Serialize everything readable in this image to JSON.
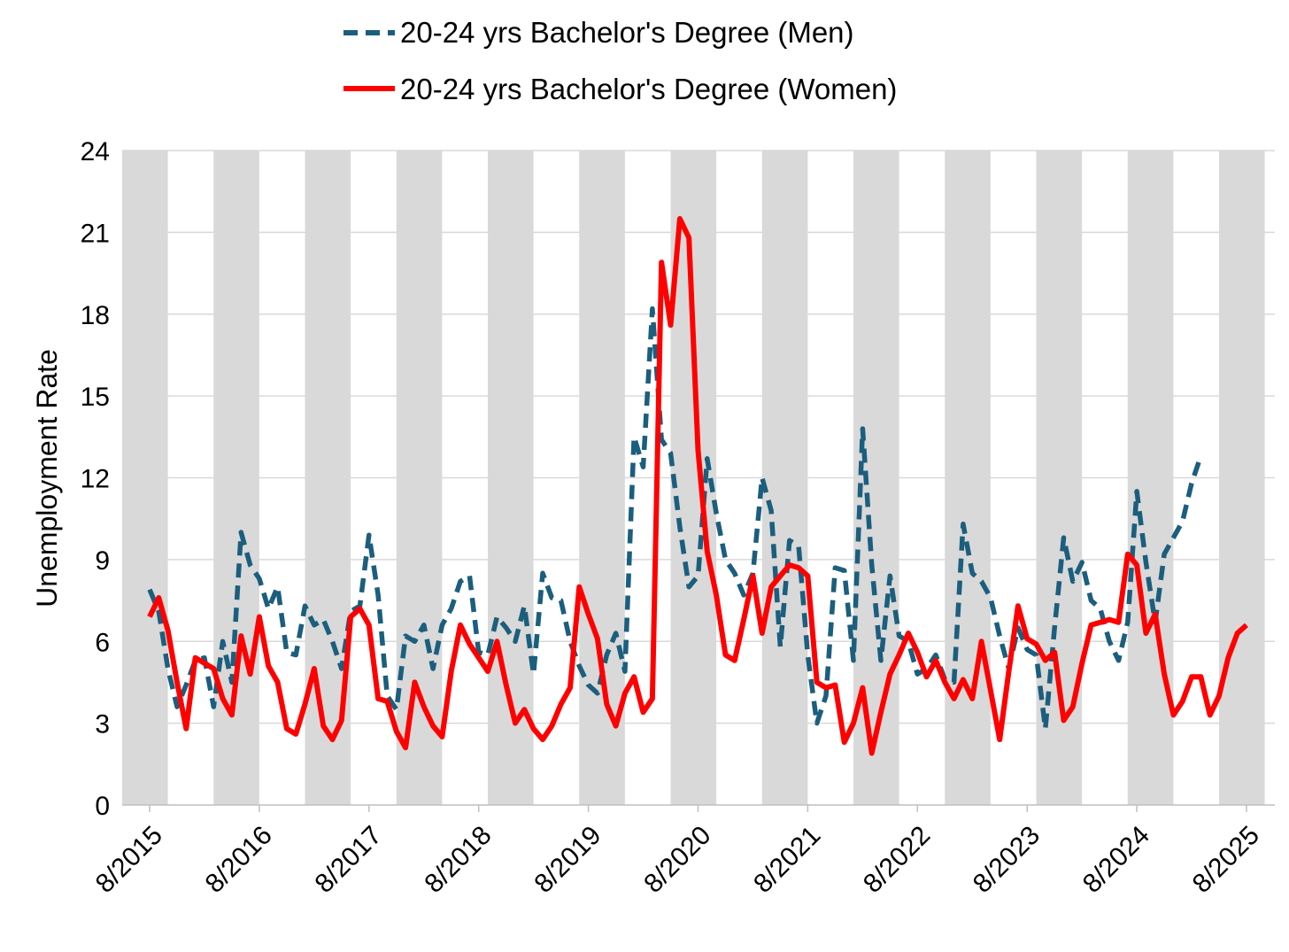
{
  "chart_data": {
    "type": "line",
    "title": "",
    "xlabel": "",
    "ylabel": "Unemployment Rate",
    "ylim": [
      0,
      24
    ],
    "yticks": [
      0,
      3,
      6,
      9,
      12,
      15,
      18,
      21,
      24
    ],
    "x_start": "8/2015",
    "x_end": "11/2025",
    "xtick_labels": [
      "8/2015",
      "8/2016",
      "8/2017",
      "8/2018",
      "8/2019",
      "8/2020",
      "8/2021",
      "8/2022",
      "8/2023",
      "8/2024",
      "8/2025"
    ],
    "gridlines": "horizontal",
    "shaded_bands": "alternating grey vertical bands",
    "legend_position": "top-center",
    "colors": {
      "men": "#1b5e7e",
      "women": "#ff0000",
      "band": "#d9d9d9",
      "grid": "#d9d9d9"
    },
    "series": [
      {
        "name": "20-24 yrs Bachelor's Degree (Men)",
        "style": "dashed",
        "color": "#1b5e7e",
        "points": [
          [
            "8/2015",
            7.9
          ],
          [
            "9/2015",
            7.1
          ],
          [
            "10/2015",
            5.0
          ],
          [
            "11/2015",
            3.6
          ],
          [
            "12/2015",
            4.4
          ],
          [
            "1/2016",
            5.3
          ],
          [
            "2/2016",
            5.4
          ],
          [
            "3/2016",
            3.6
          ],
          [
            "4/2016",
            6.0
          ],
          [
            "5/2016",
            4.5
          ],
          [
            "6/2016",
            10.0
          ],
          [
            "7/2016",
            8.8
          ],
          [
            "8/2016",
            8.3
          ],
          [
            "9/2016",
            7.2
          ],
          [
            "10/2016",
            8.0
          ],
          [
            "11/2016",
            5.6
          ],
          [
            "12/2016",
            5.5
          ],
          [
            "1/2017",
            7.3
          ],
          [
            "2/2017",
            6.6
          ],
          [
            "3/2017",
            6.8
          ],
          [
            "4/2017",
            6.0
          ],
          [
            "5/2017",
            5.0
          ],
          [
            "6/2017",
            7.1
          ],
          [
            "7/2017",
            7.3
          ],
          [
            "8/2017",
            9.9
          ],
          [
            "9/2017",
            7.7
          ],
          [
            "10/2017",
            4.0
          ],
          [
            "11/2017",
            3.5
          ],
          [
            "12/2017",
            6.2
          ],
          [
            "1/2018",
            6.0
          ],
          [
            "2/2018",
            6.6
          ],
          [
            "3/2018",
            5.0
          ],
          [
            "4/2018",
            6.6
          ],
          [
            "5/2018",
            7.2
          ],
          [
            "6/2018",
            8.2
          ],
          [
            "7/2018",
            8.4
          ],
          [
            "8/2018",
            5.6
          ],
          [
            "9/2018",
            5.5
          ],
          [
            "10/2018",
            6.9
          ],
          [
            "11/2018",
            6.5
          ],
          [
            "12/2018",
            6.0
          ],
          [
            "1/2019",
            7.3
          ],
          [
            "2/2019",
            4.8
          ],
          [
            "3/2019",
            8.5
          ],
          [
            "4/2019",
            7.6
          ],
          [
            "5/2019",
            7.5
          ],
          [
            "6/2019",
            6.0
          ],
          [
            "7/2019",
            5.1
          ],
          [
            "8/2019",
            4.4
          ],
          [
            "9/2019",
            4.1
          ],
          [
            "10/2019",
            5.5
          ],
          [
            "11/2019",
            6.3
          ],
          [
            "12/2019",
            4.9
          ],
          [
            "1/2020",
            13.5
          ],
          [
            "2/2020",
            12.4
          ],
          [
            "3/2020",
            18.2
          ],
          [
            "4/2020",
            13.4
          ],
          [
            "5/2020",
            12.9
          ],
          [
            "6/2020",
            10.2
          ],
          [
            "7/2020",
            8.0
          ],
          [
            "8/2020",
            8.4
          ],
          [
            "9/2020",
            12.7
          ],
          [
            "10/2020",
            10.7
          ],
          [
            "11/2020",
            9.0
          ],
          [
            "12/2020",
            8.5
          ],
          [
            "1/2021",
            7.7
          ],
          [
            "2/2021",
            8.5
          ],
          [
            "3/2021",
            12.0
          ],
          [
            "4/2021",
            10.8
          ],
          [
            "5/2021",
            5.8
          ],
          [
            "6/2021",
            9.7
          ],
          [
            "7/2021",
            9.5
          ],
          [
            "8/2021",
            5.5
          ],
          [
            "9/2021",
            3.0
          ],
          [
            "10/2021",
            4.0
          ],
          [
            "11/2021",
            8.7
          ],
          [
            "12/2021",
            8.6
          ],
          [
            "1/2022",
            5.3
          ],
          [
            "2/2022",
            13.8
          ],
          [
            "3/2022",
            8.8
          ],
          [
            "4/2022",
            5.3
          ],
          [
            "5/2022",
            8.4
          ],
          [
            "6/2022",
            6.2
          ],
          [
            "7/2022",
            6.0
          ],
          [
            "8/2022",
            4.8
          ],
          [
            "9/2022",
            5.0
          ],
          [
            "10/2022",
            5.5
          ],
          [
            "11/2022",
            4.6
          ],
          [
            "12/2022",
            4.5
          ],
          [
            "1/2023",
            10.3
          ],
          [
            "2/2023",
            8.5
          ],
          [
            "3/2023",
            8.2
          ],
          [
            "4/2023",
            7.6
          ],
          [
            "5/2023",
            6.2
          ],
          [
            "6/2023",
            5.0
          ],
          [
            "7/2023",
            6.5
          ],
          [
            "8/2023",
            5.7
          ],
          [
            "9/2023",
            5.5
          ],
          [
            "10/2023",
            2.8
          ],
          [
            "11/2023",
            6.5
          ],
          [
            "12/2023",
            9.8
          ],
          [
            "1/2024",
            8.2
          ],
          [
            "2/2024",
            8.9
          ],
          [
            "3/2024",
            7.5
          ],
          [
            "4/2024",
            7.2
          ],
          [
            "5/2024",
            6.0
          ],
          [
            "6/2024",
            5.3
          ],
          [
            "7/2024",
            6.7
          ],
          [
            "8/2024",
            11.5
          ],
          [
            "9/2024",
            8.9
          ],
          [
            "10/2024",
            6.7
          ],
          [
            "11/2024",
            9.2
          ],
          [
            "12/2024",
            9.8
          ],
          [
            "1/2025",
            10.4
          ],
          [
            "2/2025",
            11.8
          ],
          [
            "3/2025",
            12.8
          ]
        ]
      },
      {
        "name": "20-24 yrs Bachelor's Degree (Women)",
        "style": "solid",
        "color": "#ff0000",
        "points": [
          [
            "8/2015",
            6.9
          ],
          [
            "9/2015",
            7.6
          ],
          [
            "10/2015",
            6.4
          ],
          [
            "11/2015",
            4.5
          ],
          [
            "12/2015",
            2.8
          ],
          [
            "1/2016",
            5.4
          ],
          [
            "2/2016",
            5.2
          ],
          [
            "3/2016",
            5.0
          ],
          [
            "4/2016",
            3.9
          ],
          [
            "5/2016",
            3.3
          ],
          [
            "6/2016",
            6.2
          ],
          [
            "7/2016",
            4.8
          ],
          [
            "8/2016",
            6.9
          ],
          [
            "9/2016",
            5.1
          ],
          [
            "10/2016",
            4.5
          ],
          [
            "11/2016",
            2.8
          ],
          [
            "12/2016",
            2.6
          ],
          [
            "1/2017",
            3.7
          ],
          [
            "2/2017",
            5.0
          ],
          [
            "3/2017",
            2.9
          ],
          [
            "4/2017",
            2.4
          ],
          [
            "5/2017",
            3.1
          ],
          [
            "6/2017",
            6.9
          ],
          [
            "7/2017",
            7.2
          ],
          [
            "8/2017",
            6.6
          ],
          [
            "9/2017",
            3.9
          ],
          [
            "10/2017",
            3.8
          ],
          [
            "11/2017",
            2.7
          ],
          [
            "12/2017",
            2.1
          ],
          [
            "1/2018",
            4.5
          ],
          [
            "2/2018",
            3.6
          ],
          [
            "3/2018",
            2.9
          ],
          [
            "4/2018",
            2.5
          ],
          [
            "5/2018",
            4.9
          ],
          [
            "6/2018",
            6.6
          ],
          [
            "7/2018",
            5.9
          ],
          [
            "8/2018",
            5.4
          ],
          [
            "9/2018",
            4.9
          ],
          [
            "10/2018",
            6.0
          ],
          [
            "11/2018",
            4.4
          ],
          [
            "12/2018",
            3.0
          ],
          [
            "1/2019",
            3.5
          ],
          [
            "2/2019",
            2.8
          ],
          [
            "3/2019",
            2.4
          ],
          [
            "4/2019",
            2.9
          ],
          [
            "5/2019",
            3.7
          ],
          [
            "6/2019",
            4.3
          ],
          [
            "7/2019",
            8.0
          ],
          [
            "8/2019",
            7.0
          ],
          [
            "9/2019",
            6.1
          ],
          [
            "10/2019",
            3.7
          ],
          [
            "11/2019",
            2.9
          ],
          [
            "12/2019",
            4.1
          ],
          [
            "1/2020",
            4.7
          ],
          [
            "2/2020",
            3.4
          ],
          [
            "3/2020",
            3.9
          ],
          [
            "4/2020",
            19.9
          ],
          [
            "5/2020",
            17.6
          ],
          [
            "6/2020",
            21.5
          ],
          [
            "7/2020",
            20.8
          ],
          [
            "8/2020",
            13.0
          ],
          [
            "9/2020",
            9.3
          ],
          [
            "10/2020",
            7.7
          ],
          [
            "11/2020",
            5.5
          ],
          [
            "12/2020",
            5.3
          ],
          [
            "1/2021",
            6.8
          ],
          [
            "2/2021",
            8.4
          ],
          [
            "3/2021",
            6.3
          ],
          [
            "4/2021",
            8.0
          ],
          [
            "5/2021",
            8.4
          ],
          [
            "6/2021",
            8.8
          ],
          [
            "7/2021",
            8.7
          ],
          [
            "8/2021",
            8.4
          ],
          [
            "9/2021",
            4.5
          ],
          [
            "10/2021",
            4.3
          ],
          [
            "11/2021",
            4.4
          ],
          [
            "12/2021",
            2.3
          ],
          [
            "1/2022",
            3.0
          ],
          [
            "2/2022",
            4.3
          ],
          [
            "3/2022",
            1.9
          ],
          [
            "4/2022",
            3.4
          ],
          [
            "5/2022",
            4.8
          ],
          [
            "6/2022",
            5.5
          ],
          [
            "7/2022",
            6.3
          ],
          [
            "8/2022",
            5.6
          ],
          [
            "9/2022",
            4.7
          ],
          [
            "10/2022",
            5.3
          ],
          [
            "11/2022",
            4.5
          ],
          [
            "12/2022",
            3.9
          ],
          [
            "1/2023",
            4.6
          ],
          [
            "2/2023",
            3.9
          ],
          [
            "3/2023",
            6.0
          ],
          [
            "4/2023",
            4.2
          ],
          [
            "5/2023",
            2.4
          ],
          [
            "6/2023",
            4.9
          ],
          [
            "7/2023",
            7.3
          ],
          [
            "8/2023",
            6.1
          ],
          [
            "9/2023",
            5.9
          ],
          [
            "10/2023",
            5.3
          ],
          [
            "11/2023",
            5.6
          ],
          [
            "12/2023",
            3.1
          ],
          [
            "1/2024",
            3.6
          ],
          [
            "2/2024",
            5.2
          ],
          [
            "3/2024",
            6.6
          ],
          [
            "4/2024",
            6.7
          ],
          [
            "5/2024",
            6.8
          ],
          [
            "6/2024",
            6.7
          ],
          [
            "7/2024",
            9.2
          ],
          [
            "8/2024",
            8.8
          ],
          [
            "9/2024",
            6.3
          ],
          [
            "10/2024",
            7.0
          ],
          [
            "11/2024",
            4.8
          ],
          [
            "12/2024",
            3.3
          ],
          [
            "1/2025",
            3.8
          ],
          [
            "2/2025",
            4.7
          ],
          [
            "3/2025",
            4.7
          ],
          [
            "4/2025",
            3.3
          ],
          [
            "5/2025",
            4.0
          ],
          [
            "6/2025",
            5.4
          ],
          [
            "7/2025",
            6.3
          ],
          [
            "8/2025",
            6.6
          ]
        ]
      }
    ]
  }
}
